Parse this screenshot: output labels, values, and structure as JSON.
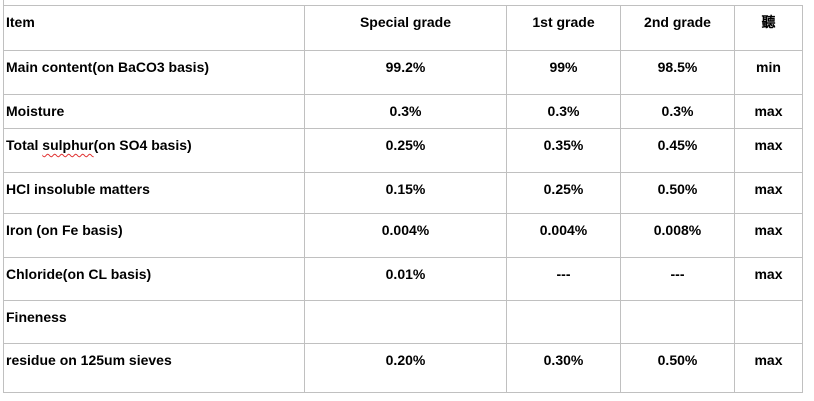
{
  "table": {
    "header": {
      "item": "Item",
      "special": "Special grade",
      "first": "1st grade",
      "second": "2nd grade",
      "unit": "聽"
    },
    "rows": [
      {
        "item_pre": "Main content(on BaCO3 basis)",
        "item_squig": "",
        "item_post": "",
        "special": "99.2%",
        "first": "99%",
        "second": "98.5%",
        "unit": "min"
      },
      {
        "item_pre": "Moisture",
        "item_squig": "",
        "item_post": "",
        "special": "0.3%",
        "first": "0.3%",
        "second": "0.3%",
        "unit": "max"
      },
      {
        "item_pre": "Total ",
        "item_squig": "sulphur",
        "item_post": "(on SO4 basis)",
        "special": "0.25%",
        "first": "0.35%",
        "second": "0.45%",
        "unit": "max"
      },
      {
        "item_pre": "HCl insoluble matters",
        "item_squig": "",
        "item_post": "",
        "special": "0.15%",
        "first": "0.25%",
        "second": "0.50%",
        "unit": "max"
      },
      {
        "item_pre": "Iron (on Fe basis)",
        "item_squig": "",
        "item_post": "",
        "special": "0.004%",
        "first": "0.004%",
        "second": "0.008%",
        "unit": "max"
      },
      {
        "item_pre": "Chloride(on CL basis)",
        "item_squig": "",
        "item_post": "",
        "special": "0.01%",
        "first": "---",
        "second": "---",
        "unit": "max"
      },
      {
        "item_pre": "Fineness",
        "item_squig": "",
        "item_post": "",
        "special": "",
        "first": "",
        "second": "",
        "unit": ""
      },
      {
        "item_pre": "residue on 125um sieves",
        "item_squig": "",
        "item_post": "",
        "special": "0.20%",
        "first": "0.30%",
        "second": "0.50%",
        "unit": "max"
      }
    ]
  }
}
